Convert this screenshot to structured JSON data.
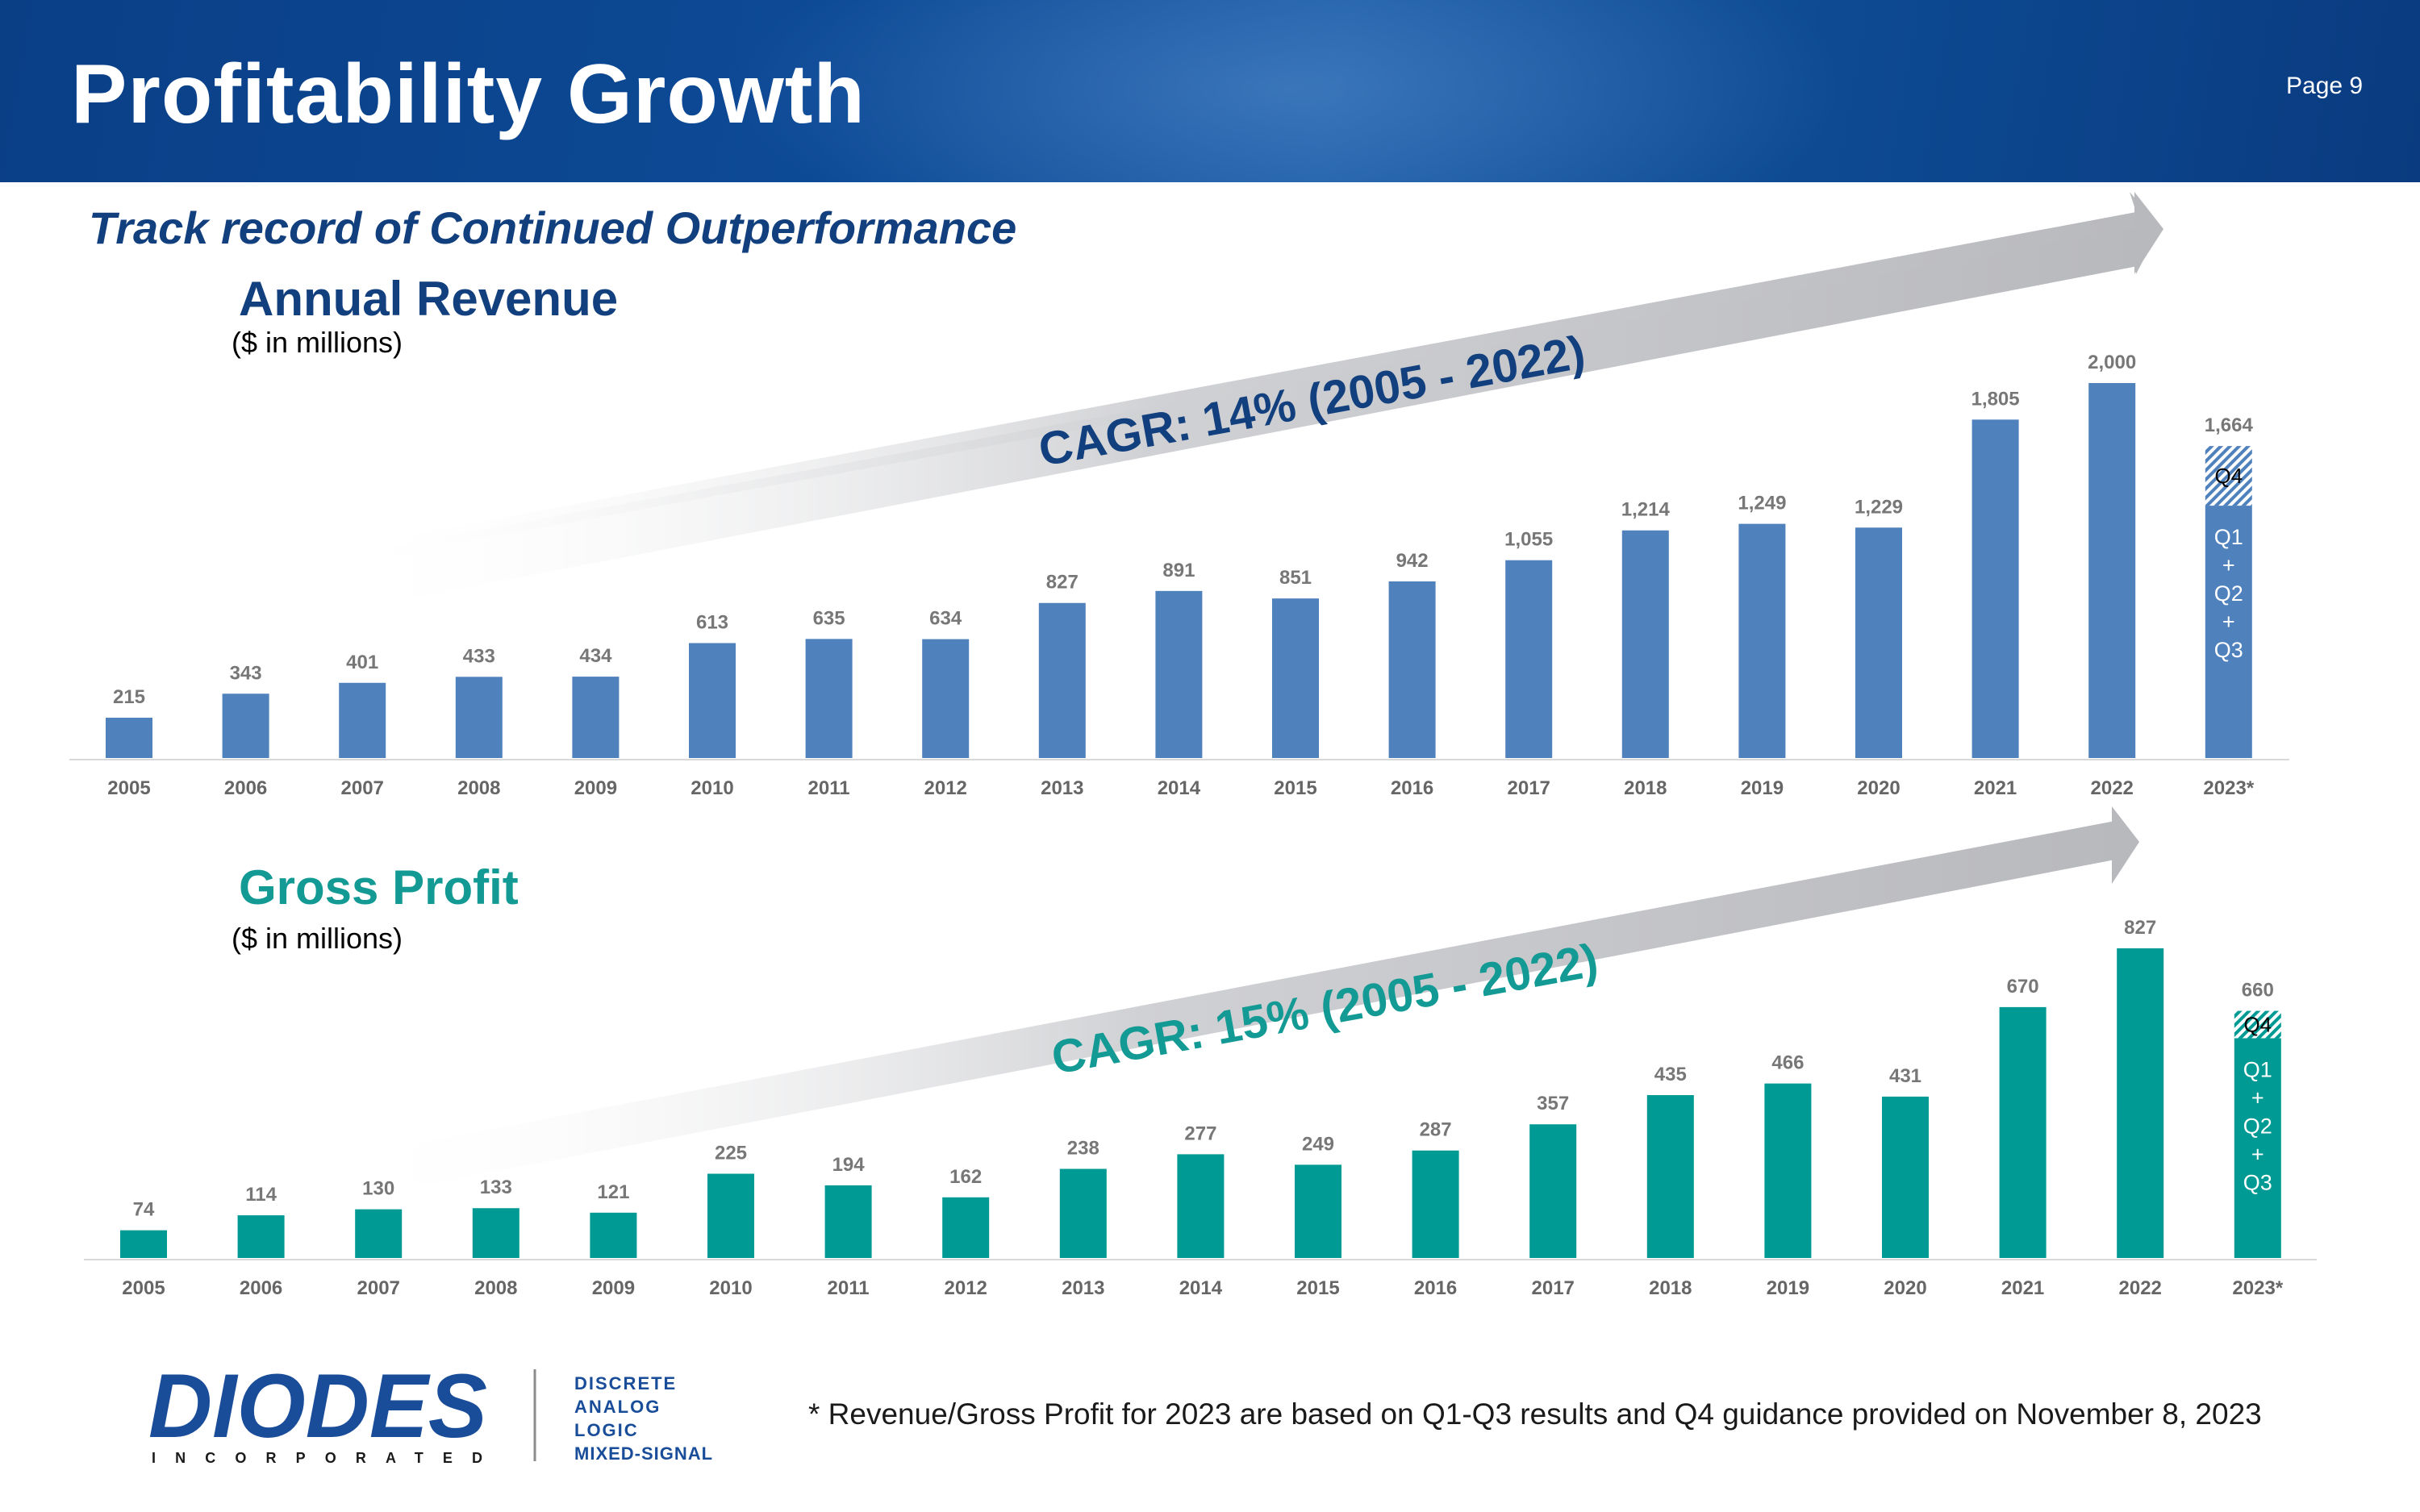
{
  "header": {
    "title": "Profitability Growth",
    "page": "Page 9"
  },
  "subtitle": "Track record of Continued Outperformance",
  "footnote": "* Revenue/Gross Profit for 2023 are based on  Q1-Q3 results and Q4 guidance provided on November 8, 2023",
  "logo": {
    "wordmark": "DIODES",
    "tagline": "INCORPORATED",
    "descriptors": [
      "DISCRETE",
      "ANALOG",
      "LOGIC",
      "MIXED-SIGNAL"
    ]
  },
  "colors": {
    "header": "#0d4a96",
    "revenue": "#4f81bd",
    "gross_profit": "#009a94",
    "cagr_revenue": "#123f7d",
    "cagr_gp": "#139a94",
    "arrow": "#bcbdc1"
  },
  "chart_data": [
    {
      "type": "bar",
      "title": "Annual Revenue",
      "unit": "($ in millions)",
      "annotation": "CAGR: 14% (2005 - 2022)",
      "categories": [
        "2005",
        "2006",
        "2007",
        "2008",
        "2009",
        "2010",
        "2011",
        "2012",
        "2013",
        "2014",
        "2015",
        "2016",
        "2017",
        "2018",
        "2019",
        "2020",
        "2021",
        "2022",
        "2023*"
      ],
      "values": [
        215,
        343,
        401,
        433,
        434,
        613,
        635,
        634,
        827,
        891,
        851,
        942,
        1055,
        1214,
        1249,
        1229,
        1805,
        2000,
        1664
      ],
      "value_labels": [
        "215",
        "343",
        "401",
        "433",
        "434",
        "613",
        "635",
        "634",
        "827",
        "891",
        "851",
        "942",
        "1,055",
        "1,214",
        "1,249",
        "1,229",
        "1,805",
        "2,000",
        "1,664"
      ],
      "last_bar_split": {
        "q1_q3": 1346,
        "q4": 318
      },
      "stack_labels": {
        "q4": "Q4",
        "q1_q3": [
          "Q1",
          "+",
          "Q2",
          "+",
          "Q3"
        ]
      },
      "ylim": [
        0,
        2000
      ]
    },
    {
      "type": "bar",
      "title": "Gross Profit",
      "unit": "($ in millions)",
      "annotation": "CAGR: 15% (2005 - 2022)",
      "categories": [
        "2005",
        "2006",
        "2007",
        "2008",
        "2009",
        "2010",
        "2011",
        "2012",
        "2013",
        "2014",
        "2015",
        "2016",
        "2017",
        "2018",
        "2019",
        "2020",
        "2021",
        "2022",
        "2023*"
      ],
      "values": [
        74,
        114,
        130,
        133,
        121,
        225,
        194,
        162,
        238,
        277,
        249,
        287,
        357,
        435,
        466,
        431,
        670,
        827,
        660
      ],
      "value_labels": [
        "74",
        "114",
        "130",
        "133",
        "121",
        "225",
        "194",
        "162",
        "238",
        "277",
        "249",
        "287",
        "357",
        "435",
        "466",
        "431",
        "670",
        "827",
        "660"
      ],
      "last_bar_split": {
        "q1_q3": 587,
        "q4": 73
      },
      "stack_labels": {
        "q4": "Q4",
        "q1_q3": [
          "Q1",
          "+",
          "Q2",
          "+",
          "Q3"
        ]
      },
      "ylim": [
        0,
        827
      ]
    }
  ]
}
